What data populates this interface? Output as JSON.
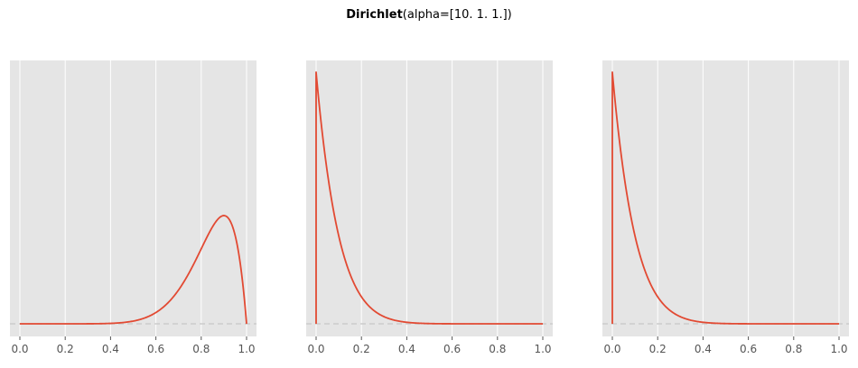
{
  "title": {
    "bold": "Dirichlet",
    "rest": "(alpha=[10.  1.  1.])"
  },
  "colors": {
    "panel_bg": "#e5e5e5",
    "grid": "#ffffff",
    "line": "#e24a33",
    "baseline": "#cccccc",
    "tick": "#555555"
  },
  "chart_data": [
    {
      "type": "line",
      "xlim": [
        0,
        1
      ],
      "xticks": [
        "0.0",
        "0.2",
        "0.4",
        "0.6",
        "0.8",
        "1.0"
      ],
      "ylim": [
        0,
        1
      ],
      "grid": true,
      "series": [
        {
          "distribution": "Beta(10, 2)",
          "peak_x": 0.9,
          "x": [
            0.0,
            0.4,
            0.5,
            0.6,
            0.7,
            0.8,
            0.9,
            0.95,
            1.0
          ],
          "y": [
            0.0,
            0.005,
            0.02,
            0.08,
            0.21,
            0.37,
            0.43,
            0.34,
            0.0
          ]
        }
      ]
    },
    {
      "type": "line",
      "xlim": [
        0,
        1
      ],
      "xticks": [
        "0.0",
        "0.2",
        "0.4",
        "0.6",
        "0.8",
        "1.0"
      ],
      "ylim": [
        0,
        1
      ],
      "grid": true,
      "series": [
        {
          "distribution": "Beta(1, 11)",
          "peak_x": 0.0,
          "x": [
            0.0,
            0.05,
            0.1,
            0.2,
            0.3,
            0.4,
            0.6,
            1.0
          ],
          "y": [
            1.0,
            0.57,
            0.31,
            0.09,
            0.02,
            0.005,
            0.0,
            0.0
          ]
        }
      ]
    },
    {
      "type": "line",
      "xlim": [
        0,
        1
      ],
      "xticks": [
        "0.0",
        "0.2",
        "0.4",
        "0.6",
        "0.8",
        "1.0"
      ],
      "ylim": [
        0,
        1
      ],
      "grid": true,
      "series": [
        {
          "distribution": "Beta(1, 11)",
          "peak_x": 0.0,
          "x": [
            0.0,
            0.05,
            0.1,
            0.2,
            0.3,
            0.4,
            0.6,
            1.0
          ],
          "y": [
            1.0,
            0.57,
            0.31,
            0.09,
            0.02,
            0.005,
            0.0,
            0.0
          ]
        }
      ]
    }
  ]
}
